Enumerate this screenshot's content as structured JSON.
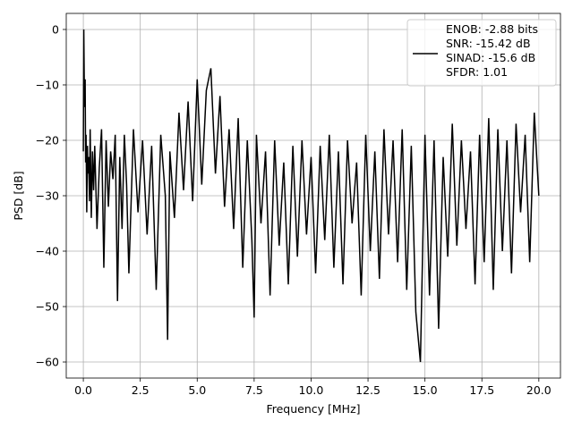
{
  "chart_data": {
    "type": "line",
    "xlabel": "Frequency [MHz]",
    "ylabel": "PSD [dB]",
    "xlim": [
      -0.75,
      20.95
    ],
    "ylim": [
      -62.9,
      2.9
    ],
    "xticks": [
      0.0,
      2.5,
      5.0,
      7.5,
      10.0,
      12.5,
      15.0,
      17.5,
      20.0
    ],
    "xtick_labels": [
      "0.0",
      "2.5",
      "5.0",
      "7.5",
      "10.0",
      "12.5",
      "15.0",
      "17.5",
      "20.0"
    ],
    "yticks": [
      0,
      -10,
      -20,
      -30,
      -40,
      -50,
      -60
    ],
    "ytick_labels": [
      "0",
      "−10",
      "−20",
      "−30",
      "−40",
      "−50",
      "−60"
    ],
    "grid": true,
    "legend_position": "top-right",
    "legend": [
      "ENOB: -2.88 bits",
      "SNR: -15.42 dB",
      "SINAD: -15.6 dB",
      "SFDR: 1.01"
    ],
    "series": [
      {
        "color": "#000000",
        "x": [
          0.0,
          0.02,
          0.05,
          0.08,
          0.1,
          0.12,
          0.15,
          0.18,
          0.2,
          0.23,
          0.27,
          0.3,
          0.35,
          0.4,
          0.45,
          0.5,
          0.6,
          0.7,
          0.8,
          0.9,
          1.0,
          1.1,
          1.2,
          1.3,
          1.4,
          1.5,
          1.6,
          1.7,
          1.8,
          1.9,
          2.0,
          2.2,
          2.4,
          2.6,
          2.8,
          3.0,
          3.2,
          3.4,
          3.6,
          3.7,
          3.8,
          4.0,
          4.2,
          4.4,
          4.6,
          4.8,
          5.0,
          5.2,
          5.4,
          5.6,
          5.8,
          6.0,
          6.2,
          6.4,
          6.6,
          6.8,
          7.0,
          7.2,
          7.4,
          7.5,
          7.6,
          7.8,
          8.0,
          8.2,
          8.4,
          8.6,
          8.8,
          9.0,
          9.2,
          9.4,
          9.6,
          9.8,
          10.0,
          10.2,
          10.4,
          10.6,
          10.8,
          11.0,
          11.2,
          11.4,
          11.6,
          11.8,
          12.0,
          12.2,
          12.4,
          12.6,
          12.8,
          13.0,
          13.2,
          13.4,
          13.6,
          13.8,
          14.0,
          14.2,
          14.4,
          14.6,
          14.8,
          15.0,
          15.2,
          15.4,
          15.6,
          15.8,
          16.0,
          16.2,
          16.4,
          16.6,
          16.8,
          17.0,
          17.2,
          17.4,
          17.6,
          17.8,
          18.0,
          18.2,
          18.4,
          18.6,
          18.8,
          19.0,
          19.2,
          19.4,
          19.6,
          19.8,
          20.0
        ],
        "y": [
          -22.0,
          0.0,
          -14.0,
          -9.0,
          -24.0,
          -19.0,
          -33.0,
          -21.0,
          -26.0,
          -23.0,
          -31.0,
          -18.0,
          -34.0,
          -22.0,
          -29.0,
          -21.0,
          -36.0,
          -25.0,
          -18.0,
          -43.0,
          -20.0,
          -32.0,
          -22.0,
          -27.0,
          -19.0,
          -49.0,
          -23.0,
          -36.0,
          -19.0,
          -28.0,
          -44.0,
          -18.0,
          -33.0,
          -20.0,
          -37.0,
          -21.0,
          -47.0,
          -19.0,
          -30.0,
          -56.0,
          -22.0,
          -34.0,
          -15.0,
          -29.0,
          -13.0,
          -31.0,
          -9.0,
          -28.0,
          -11.0,
          -7.0,
          -26.0,
          -12.0,
          -32.0,
          -18.0,
          -36.0,
          -16.0,
          -43.0,
          -20.0,
          -38.0,
          -52.0,
          -19.0,
          -35.0,
          -22.0,
          -48.0,
          -20.0,
          -39.0,
          -24.0,
          -46.0,
          -21.0,
          -41.0,
          -20.0,
          -37.0,
          -23.0,
          -44.0,
          -21.0,
          -38.0,
          -19.0,
          -43.0,
          -22.0,
          -46.0,
          -20.0,
          -35.0,
          -24.0,
          -48.0,
          -19.0,
          -40.0,
          -22.0,
          -45.0,
          -18.0,
          -37.0,
          -20.0,
          -42.0,
          -18.0,
          -47.0,
          -21.0,
          -51.0,
          -60.0,
          -19.0,
          -48.0,
          -20.0,
          -54.0,
          -23.0,
          -41.0,
          -17.0,
          -39.0,
          -20.0,
          -36.0,
          -22.0,
          -46.0,
          -19.0,
          -42.0,
          -16.0,
          -47.0,
          -18.0,
          -40.0,
          -20.0,
          -44.0,
          -17.0,
          -33.0,
          -19.0,
          -42.0,
          -15.0,
          -30.0
        ]
      }
    ]
  }
}
